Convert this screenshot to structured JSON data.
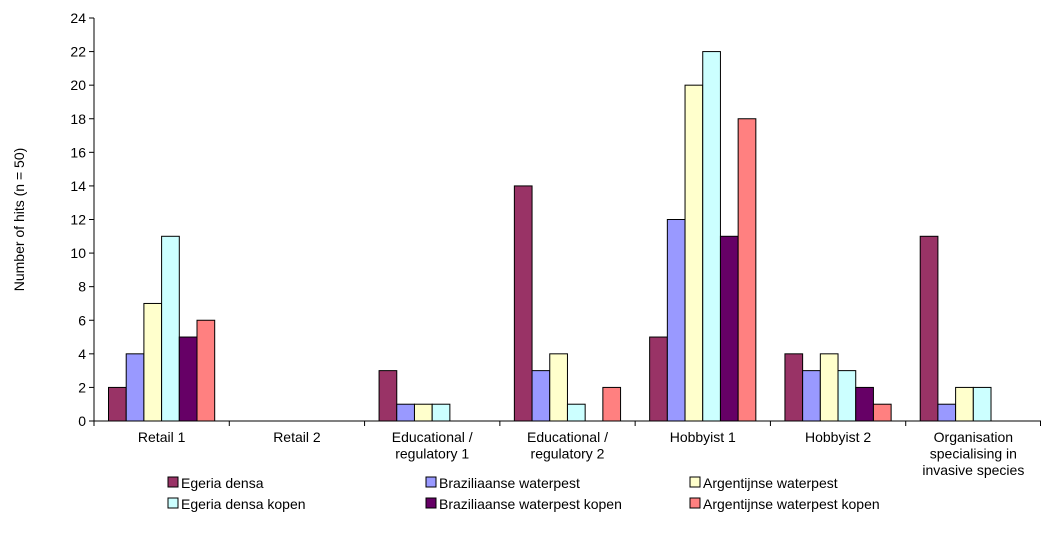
{
  "chart_data": {
    "type": "bar",
    "ylabel": "Number of hits (n = 50)",
    "ylim": [
      0,
      24
    ],
    "yticks": [
      0,
      2,
      4,
      6,
      8,
      10,
      12,
      14,
      16,
      18,
      20,
      22,
      24
    ],
    "grid": false,
    "legend_position": "bottom",
    "categories": [
      [
        "Retail 1"
      ],
      [
        "Retail 2"
      ],
      [
        "Educational /",
        "regulatory 1"
      ],
      [
        "Educational /",
        "regulatory 2"
      ],
      [
        "Hobbyist 1"
      ],
      [
        "Hobbyist 2"
      ],
      [
        "Organisation",
        "specialising in",
        "invasive species"
      ]
    ],
    "series": [
      {
        "name": "Egeria densa",
        "color": "#993366",
        "values": [
          2,
          0,
          3,
          14,
          5,
          4,
          11
        ]
      },
      {
        "name": "Braziliaanse waterpest",
        "color": "#9999ff",
        "values": [
          4,
          0,
          1,
          3,
          12,
          3,
          1
        ]
      },
      {
        "name": "Argentijnse waterpest",
        "color": "#ffffcc",
        "values": [
          7,
          0,
          1,
          4,
          20,
          4,
          2
        ]
      },
      {
        "name": "Egeria densa kopen",
        "color": "#ccffff",
        "values": [
          11,
          0,
          1,
          1,
          22,
          3,
          2
        ]
      },
      {
        "name": "Braziliaanse waterpest kopen",
        "color": "#660066",
        "values": [
          5,
          0,
          0,
          0,
          11,
          2,
          0
        ]
      },
      {
        "name": "Argentijnse waterpest kopen",
        "color": "#ff8080",
        "values": [
          6,
          0,
          0,
          2,
          18,
          1,
          0
        ]
      }
    ]
  }
}
